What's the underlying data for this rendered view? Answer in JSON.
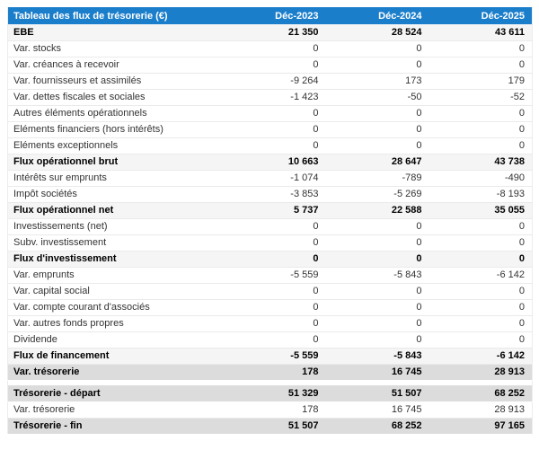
{
  "table": {
    "title": "Tableau des flux de trésorerie (€)",
    "columns": [
      "Déc-2023",
      "Déc-2024",
      "Déc-2025"
    ],
    "colors": {
      "header_bg": "#1b7ecb",
      "header_text": "#ffffff",
      "subtotal_bg": "#f5f5f5",
      "highlight_bg": "#dcdcdc"
    },
    "rows": [
      {
        "label": "EBE",
        "values": [
          "21 350",
          "28 524",
          "43 611"
        ],
        "style": "subtotal"
      },
      {
        "label": "Var. stocks",
        "values": [
          "0",
          "0",
          "0"
        ],
        "style": "normal"
      },
      {
        "label": "Var. créances à recevoir",
        "values": [
          "0",
          "0",
          "0"
        ],
        "style": "normal"
      },
      {
        "label": "Var. fournisseurs et assimilés",
        "values": [
          "-9 264",
          "173",
          "179"
        ],
        "style": "normal"
      },
      {
        "label": "Var. dettes fiscales et sociales",
        "values": [
          "-1 423",
          "-50",
          "-52"
        ],
        "style": "normal"
      },
      {
        "label": "Autres éléments opérationnels",
        "values": [
          "0",
          "0",
          "0"
        ],
        "style": "normal"
      },
      {
        "label": "Eléments financiers (hors intérêts)",
        "values": [
          "0",
          "0",
          "0"
        ],
        "style": "normal"
      },
      {
        "label": "Eléments exceptionnels",
        "values": [
          "0",
          "0",
          "0"
        ],
        "style": "normal"
      },
      {
        "label": "Flux opérationnel brut",
        "values": [
          "10 663",
          "28 647",
          "43 738"
        ],
        "style": "subtotal"
      },
      {
        "label": "Intérêts sur emprunts",
        "values": [
          "-1 074",
          "-789",
          "-490"
        ],
        "style": "normal"
      },
      {
        "label": "Impôt sociétés",
        "values": [
          "-3 853",
          "-5 269",
          "-8 193"
        ],
        "style": "normal"
      },
      {
        "label": "Flux opérationnel net",
        "values": [
          "5 737",
          "22 588",
          "35 055"
        ],
        "style": "subtotal"
      },
      {
        "label": "Investissements (net)",
        "values": [
          "0",
          "0",
          "0"
        ],
        "style": "normal"
      },
      {
        "label": "Subv. investissement",
        "values": [
          "0",
          "0",
          "0"
        ],
        "style": "normal"
      },
      {
        "label": "Flux d'investissement",
        "values": [
          "0",
          "0",
          "0"
        ],
        "style": "subtotal"
      },
      {
        "label": "Var. emprunts",
        "values": [
          "-5 559",
          "-5 843",
          "-6 142"
        ],
        "style": "normal"
      },
      {
        "label": "Var. capital social",
        "values": [
          "0",
          "0",
          "0"
        ],
        "style": "normal"
      },
      {
        "label": "Var. compte courant d'associés",
        "values": [
          "0",
          "0",
          "0"
        ],
        "style": "normal"
      },
      {
        "label": "Var. autres fonds propres",
        "values": [
          "0",
          "0",
          "0"
        ],
        "style": "normal"
      },
      {
        "label": "Dividende",
        "values": [
          "0",
          "0",
          "0"
        ],
        "style": "normal"
      },
      {
        "label": "Flux de financement",
        "values": [
          "-5 559",
          "-5 843",
          "-6 142"
        ],
        "style": "subtotal"
      },
      {
        "label": "Var. trésorerie",
        "values": [
          "178",
          "16 745",
          "28 913"
        ],
        "style": "highlight"
      },
      {
        "label": "Trésorerie - départ",
        "values": [
          "51 329",
          "51 507",
          "68 252"
        ],
        "style": "highlight",
        "gap_before": true
      },
      {
        "label": "Var. trésorerie",
        "values": [
          "178",
          "16 745",
          "28 913"
        ],
        "style": "normal"
      },
      {
        "label": "Trésorerie - fin",
        "values": [
          "51 507",
          "68 252",
          "97 165"
        ],
        "style": "highlight"
      }
    ]
  }
}
